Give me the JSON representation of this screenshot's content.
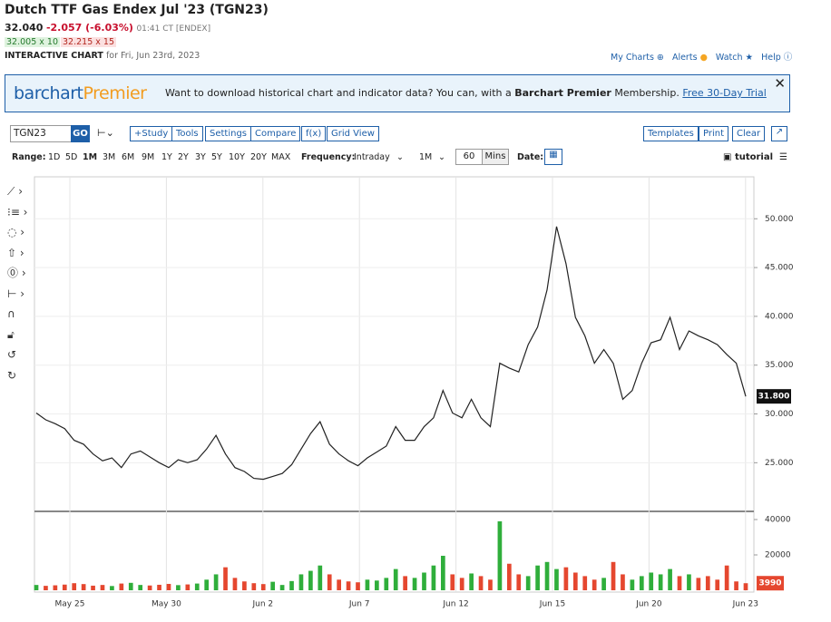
{
  "header": {
    "title": "Dutch TTF Gas Endex Jul '23 (TGN23)",
    "price": "32.040",
    "change": "-2.057 (-6.03%)",
    "time": "01:41 CT [ENDEX]",
    "bid": "32.005 x 10",
    "ask": "32.215 x 15",
    "chart_label": "INTERACTIVE CHART",
    "chart_date": "for Fri, Jun 23rd, 2023",
    "links": [
      "My Charts",
      "Alerts",
      "Watch",
      "Help"
    ]
  },
  "banner": {
    "brand": "barchart",
    "brand_accent": "Premier",
    "text": "Want to download historical chart and indicator data? You can, with a",
    "strong": "Barchart Premier",
    "text2": "Membership.",
    "link": "Free 30-Day Trial"
  },
  "toolbar": {
    "symbol": "TGN23",
    "go": "GO",
    "left_buttons": [
      "+Study",
      "Tools",
      "Settings",
      "Compare",
      "f(x)",
      "Grid View"
    ],
    "right_buttons": [
      "Templates",
      "Print",
      "Clear"
    ]
  },
  "range_bar": {
    "range_label": "Range:",
    "ranges": [
      "1D",
      "5D",
      "1M",
      "3M",
      "6M",
      "9M",
      "1Y",
      "2Y",
      "3Y",
      "5Y",
      "10Y",
      "20Y",
      "MAX"
    ],
    "frequency_label": "Frequency:",
    "frequency": "Intraday",
    "interval": "1M",
    "mins_value": "60",
    "mins": "Mins",
    "date_label": "Date:",
    "tutorial": "tutorial"
  },
  "chart_data": {
    "type": "line",
    "color": "#222222",
    "x_labels": [
      "May 25",
      "May 30",
      "Jun 2",
      "Jun 7",
      "Jun 12",
      "Jun 15",
      "Jun 20",
      "Jun 23"
    ],
    "values": [
      30.1,
      29.4,
      29.0,
      28.5,
      27.3,
      26.9,
      25.9,
      25.2,
      25.5,
      24.5,
      25.9,
      26.2,
      25.6,
      25.0,
      24.5,
      25.3,
      25.0,
      25.3,
      26.4,
      27.8,
      25.9,
      24.5,
      24.1,
      23.4,
      23.3,
      23.6,
      23.9,
      24.8,
      26.4,
      28.0,
      29.2,
      26.9,
      25.9,
      25.2,
      24.7,
      25.5,
      26.1,
      26.7,
      28.7,
      27.3,
      27.3,
      28.7,
      29.6,
      32.4,
      30.1,
      29.6,
      31.5,
      29.6,
      28.7,
      35.2,
      34.7,
      34.3,
      37.1,
      38.9,
      42.7,
      49.2,
      45.4,
      39.9,
      38.0,
      35.2,
      36.6,
      35.2,
      31.5,
      32.4,
      35.2,
      37.3,
      37.6,
      39.9,
      36.6,
      38.5,
      38.0,
      37.6,
      37.1,
      36.1,
      35.2,
      31.8
    ],
    "ylim": [
      20.2,
      54.3
    ],
    "yticks": [
      {
        "value": 25,
        "label": "25.000"
      },
      {
        "value": 30,
        "label": "30.000"
      },
      {
        "value": 35,
        "label": "35.000"
      },
      {
        "value": 40,
        "label": "40.000"
      },
      {
        "value": 45,
        "label": "45.000"
      },
      {
        "value": 50,
        "label": "50.000"
      }
    ],
    "last_price": {
      "value": 31.8,
      "label": "31.800"
    },
    "grid": true,
    "volume": {
      "up_color": "#2fae3b",
      "down_color": "#e5472f",
      "values": [
        3000,
        2500,
        2800,
        3200,
        4000,
        3500,
        2600,
        3000,
        2400,
        3800,
        4200,
        3000,
        2700,
        3100,
        3600,
        2900,
        3300,
        3800,
        6000,
        9000,
        13000,
        7000,
        5000,
        4000,
        3500,
        4800,
        3000,
        5200,
        9000,
        11000,
        14000,
        9000,
        6000,
        5000,
        4500,
        6000,
        5500,
        7000,
        12000,
        8000,
        7000,
        10000,
        14000,
        19500,
        9000,
        7000,
        9500,
        8000,
        6000,
        39000,
        15000,
        9000,
        8000,
        14000,
        16000,
        12000,
        13000,
        10000,
        8000,
        6000,
        7000,
        16000,
        9000,
        6000,
        8000,
        10000,
        9000,
        12000,
        8000,
        9000,
        7000,
        8000,
        6000,
        14000,
        5000,
        3990
      ],
      "ylim": [
        0,
        44100
      ],
      "yticks": [
        20000,
        40000
      ],
      "last": 3990
    }
  }
}
